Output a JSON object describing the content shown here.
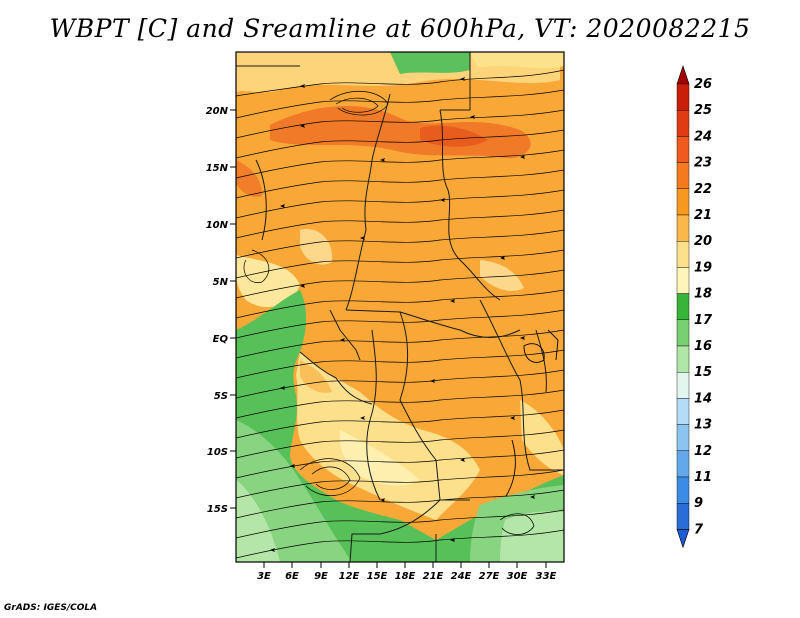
{
  "title": "WBPT [C] and Sreamline at 600hPa, VT: 2020082215",
  "credit": "GrADS: IGES/COLA",
  "lat_labels": [
    "20N",
    "15N",
    "10N",
    "5N",
    "EQ",
    "5S",
    "10S",
    "15S"
  ],
  "lon_labels": [
    "3E",
    "6E",
    "9E",
    "12E",
    "15E",
    "18E",
    "21E",
    "24E",
    "27E",
    "30E",
    "33E"
  ],
  "colorbar": {
    "levels": [
      "26",
      "25",
      "24",
      "23",
      "22",
      "21",
      "20",
      "19",
      "18",
      "17",
      "16",
      "15",
      "14",
      "13",
      "12",
      "11",
      "9",
      "7"
    ],
    "colors": [
      "#a50000",
      "#c81e0a",
      "#e03c14",
      "#f05a1e",
      "#f57a1e",
      "#f7991f",
      "#fbb84a",
      "#fde08c",
      "#fff5b8",
      "#38b438",
      "#78d070",
      "#b0e6a6",
      "#e2f6ee",
      "#b4dcf8",
      "#8cc4f0",
      "#64a8ea",
      "#3c8ce6",
      "#2a6cd8",
      "#1e5ad2"
    ]
  },
  "colors": {
    "warm_dominant": "#f8a030",
    "hot_belt": "#f07828",
    "cool_green": "#58c058"
  }
}
